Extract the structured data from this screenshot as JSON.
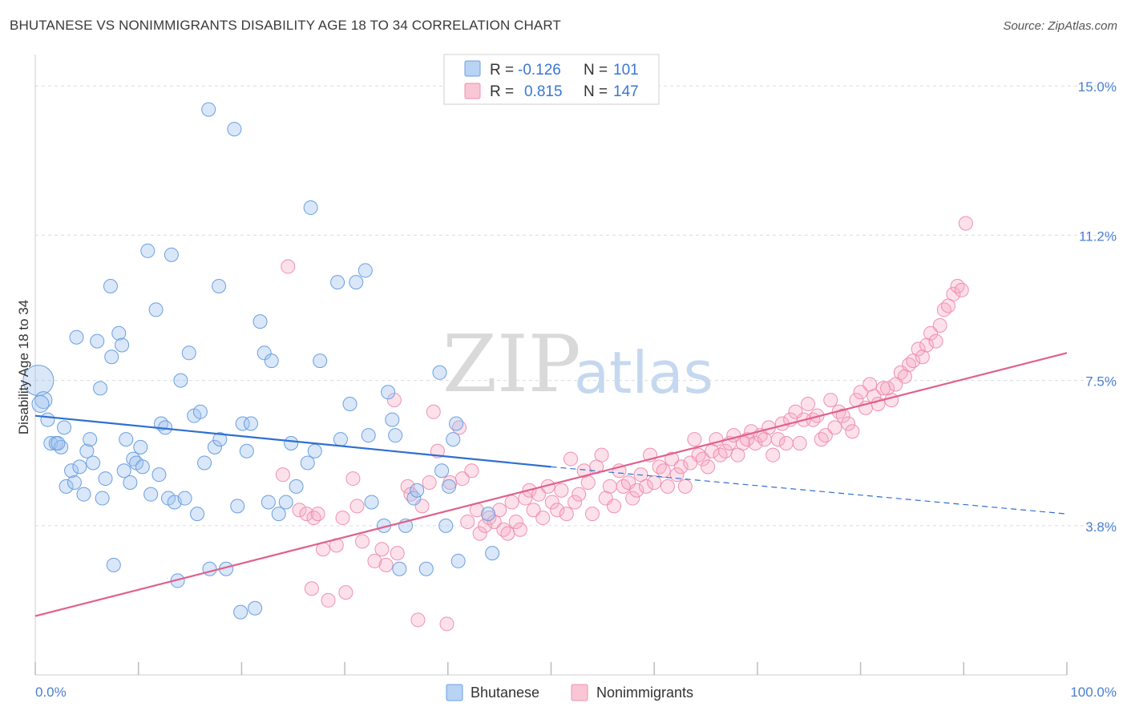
{
  "title": "BHUTANESE VS NONIMMIGRANTS DISABILITY AGE 18 TO 34 CORRELATION CHART",
  "source": "Source: ZipAtlas.com",
  "watermark": {
    "zip": "ZIP",
    "atlas": "atlas"
  },
  "legend_box": [
    {
      "r_label": "R =",
      "r_value": "-0.126",
      "n_label": "N =",
      "n_value": "101"
    },
    {
      "r_label": "R =",
      "r_value": "0.815",
      "n_label": "N =",
      "n_value": "147"
    }
  ],
  "chart_data": {
    "type": "scatter",
    "title": "BHUTANESE VS NONIMMIGRANTS DISABILITY AGE 18 TO 34 CORRELATION CHART",
    "ylabel": "Disability Age 18 to 34",
    "xlabel": "",
    "x_tick_labels": [
      "0.0%",
      "100.0%"
    ],
    "y_tick_labels": [
      "15.0%",
      "11.2%",
      "7.5%",
      "3.8%"
    ],
    "y_ticks": [
      15.0,
      11.2,
      7.5,
      3.8
    ],
    "xlim": [
      0,
      100
    ],
    "ylim": [
      0,
      15.8
    ],
    "grid": true,
    "legend_placement": "bottom-center",
    "colors": {
      "bhutanese": "#6b9fe0",
      "nonimmigrants": "#f090b0",
      "bhutanese_line": "#2f6fcf",
      "nonimmigrants_line": "#e0608e"
    },
    "series": [
      {
        "name": "Bhutanese",
        "r": -0.126,
        "n": 101,
        "trend": {
          "x": [
            0,
            50
          ],
          "y": [
            6.6,
            5.3
          ],
          "dashed_to": [
            100,
            4.1
          ]
        },
        "points": [
          [
            0.3,
            7.5
          ],
          [
            0.8,
            7.0
          ],
          [
            0.5,
            6.9
          ],
          [
            1.2,
            6.5
          ],
          [
            1.5,
            5.9
          ],
          [
            2.0,
            5.9
          ],
          [
            2.5,
            5.8
          ],
          [
            2.2,
            5.9
          ],
          [
            2.8,
            6.3
          ],
          [
            3.0,
            4.8
          ],
          [
            3.5,
            5.2
          ],
          [
            3.8,
            4.9
          ],
          [
            4.0,
            8.6
          ],
          [
            4.3,
            5.3
          ],
          [
            4.7,
            4.6
          ],
          [
            5.0,
            5.7
          ],
          [
            5.3,
            6.0
          ],
          [
            5.6,
            5.4
          ],
          [
            6.0,
            8.5
          ],
          [
            6.3,
            7.3
          ],
          [
            6.5,
            4.5
          ],
          [
            6.8,
            5.0
          ],
          [
            7.3,
            9.9
          ],
          [
            7.4,
            8.1
          ],
          [
            7.6,
            2.8
          ],
          [
            8.1,
            8.7
          ],
          [
            8.4,
            8.4
          ],
          [
            8.6,
            5.2
          ],
          [
            8.8,
            6.0
          ],
          [
            9.2,
            4.9
          ],
          [
            9.5,
            5.5
          ],
          [
            9.8,
            5.4
          ],
          [
            10.2,
            5.8
          ],
          [
            10.4,
            5.3
          ],
          [
            10.9,
            10.8
          ],
          [
            11.2,
            4.6
          ],
          [
            11.7,
            9.3
          ],
          [
            12.0,
            5.1
          ],
          [
            12.2,
            6.4
          ],
          [
            12.6,
            6.3
          ],
          [
            12.9,
            4.5
          ],
          [
            13.2,
            10.7
          ],
          [
            13.5,
            4.4
          ],
          [
            13.8,
            2.4
          ],
          [
            14.1,
            7.5
          ],
          [
            14.5,
            4.5
          ],
          [
            14.9,
            8.2
          ],
          [
            15.4,
            6.6
          ],
          [
            15.7,
            4.1
          ],
          [
            16.0,
            6.7
          ],
          [
            16.4,
            5.4
          ],
          [
            16.8,
            14.4
          ],
          [
            16.9,
            2.7
          ],
          [
            17.4,
            5.8
          ],
          [
            17.8,
            9.9
          ],
          [
            17.9,
            6.0
          ],
          [
            18.5,
            2.7
          ],
          [
            19.3,
            13.9
          ],
          [
            19.6,
            4.3
          ],
          [
            19.9,
            1.6
          ],
          [
            20.1,
            6.4
          ],
          [
            20.5,
            5.7
          ],
          [
            20.9,
            6.4
          ],
          [
            21.3,
            1.7
          ],
          [
            21.8,
            9.0
          ],
          [
            22.2,
            8.2
          ],
          [
            22.6,
            4.4
          ],
          [
            22.9,
            8.0
          ],
          [
            23.6,
            4.1
          ],
          [
            24.3,
            4.4
          ],
          [
            24.8,
            5.9
          ],
          [
            25.3,
            4.8
          ],
          [
            26.4,
            5.4
          ],
          [
            26.7,
            11.9
          ],
          [
            27.1,
            5.7
          ],
          [
            27.6,
            8.0
          ],
          [
            29.3,
            10.0
          ],
          [
            29.6,
            6.0
          ],
          [
            30.5,
            6.9
          ],
          [
            31.1,
            10.0
          ],
          [
            32.0,
            10.3
          ],
          [
            32.3,
            6.1
          ],
          [
            32.6,
            4.4
          ],
          [
            33.8,
            3.8
          ],
          [
            34.2,
            7.2
          ],
          [
            34.6,
            6.5
          ],
          [
            34.9,
            6.1
          ],
          [
            35.3,
            2.7
          ],
          [
            35.9,
            3.8
          ],
          [
            36.7,
            4.5
          ],
          [
            37.0,
            4.7
          ],
          [
            37.9,
            2.7
          ],
          [
            39.2,
            7.7
          ],
          [
            39.4,
            5.2
          ],
          [
            39.8,
            3.8
          ],
          [
            40.1,
            4.8
          ],
          [
            40.5,
            6.0
          ],
          [
            40.8,
            6.4
          ],
          [
            41.0,
            2.9
          ],
          [
            43.9,
            4.1
          ],
          [
            44.3,
            3.1
          ]
        ]
      },
      {
        "name": "Nonimmigrants",
        "r": 0.815,
        "n": 147,
        "trend": {
          "x": [
            0,
            100
          ],
          "y": [
            1.5,
            8.2
          ]
        },
        "points": [
          [
            24.5,
            10.4
          ],
          [
            24.0,
            5.1
          ],
          [
            25.6,
            4.2
          ],
          [
            26.3,
            4.1
          ],
          [
            26.8,
            2.2
          ],
          [
            27.0,
            4.0
          ],
          [
            27.4,
            4.1
          ],
          [
            27.9,
            3.2
          ],
          [
            28.4,
            1.9
          ],
          [
            29.2,
            3.3
          ],
          [
            29.8,
            4.0
          ],
          [
            30.1,
            2.1
          ],
          [
            30.8,
            5.0
          ],
          [
            31.2,
            4.3
          ],
          [
            31.7,
            3.4
          ],
          [
            32.9,
            2.9
          ],
          [
            33.6,
            3.2
          ],
          [
            34.0,
            2.8
          ],
          [
            34.8,
            7.0
          ],
          [
            35.1,
            3.1
          ],
          [
            36.1,
            4.8
          ],
          [
            36.4,
            4.6
          ],
          [
            37.1,
            1.4
          ],
          [
            37.5,
            4.3
          ],
          [
            38.2,
            4.9
          ],
          [
            38.6,
            6.7
          ],
          [
            39.0,
            5.7
          ],
          [
            39.9,
            1.3
          ],
          [
            40.2,
            4.9
          ],
          [
            41.1,
            6.3
          ],
          [
            41.4,
            5.0
          ],
          [
            41.9,
            3.9
          ],
          [
            42.3,
            5.2
          ],
          [
            42.8,
            4.2
          ],
          [
            43.1,
            3.6
          ],
          [
            43.6,
            3.8
          ],
          [
            44.0,
            4.0
          ],
          [
            44.5,
            3.9
          ],
          [
            45.0,
            4.2
          ],
          [
            45.4,
            3.7
          ],
          [
            45.8,
            3.6
          ],
          [
            46.2,
            4.4
          ],
          [
            46.6,
            3.9
          ],
          [
            47.0,
            3.7
          ],
          [
            47.5,
            4.5
          ],
          [
            47.9,
            4.7
          ],
          [
            48.3,
            4.2
          ],
          [
            48.8,
            4.6
          ],
          [
            49.2,
            4.0
          ],
          [
            49.7,
            4.8
          ],
          [
            50.1,
            4.4
          ],
          [
            50.6,
            4.2
          ],
          [
            51.0,
            4.7
          ],
          [
            51.5,
            4.1
          ],
          [
            51.9,
            5.5
          ],
          [
            52.3,
            4.4
          ],
          [
            52.7,
            4.6
          ],
          [
            53.2,
            5.2
          ],
          [
            53.6,
            4.9
          ],
          [
            54.0,
            4.1
          ],
          [
            54.4,
            5.3
          ],
          [
            54.9,
            5.6
          ],
          [
            55.3,
            4.5
          ],
          [
            55.7,
            4.8
          ],
          [
            56.1,
            4.3
          ],
          [
            56.6,
            5.2
          ],
          [
            57.0,
            4.8
          ],
          [
            57.5,
            4.9
          ],
          [
            57.9,
            4.5
          ],
          [
            58.3,
            4.7
          ],
          [
            58.7,
            5.1
          ],
          [
            59.2,
            4.8
          ],
          [
            59.6,
            5.6
          ],
          [
            60.0,
            4.9
          ],
          [
            60.5,
            5.3
          ],
          [
            60.9,
            5.2
          ],
          [
            61.3,
            4.8
          ],
          [
            61.7,
            5.5
          ],
          [
            62.2,
            5.1
          ],
          [
            62.6,
            5.3
          ],
          [
            63.0,
            4.8
          ],
          [
            63.5,
            5.4
          ],
          [
            63.9,
            6.0
          ],
          [
            64.3,
            5.6
          ],
          [
            64.7,
            5.5
          ],
          [
            65.2,
            5.3
          ],
          [
            65.6,
            5.7
          ],
          [
            66.0,
            6.0
          ],
          [
            66.4,
            5.6
          ],
          [
            66.9,
            5.7
          ],
          [
            67.3,
            5.9
          ],
          [
            67.7,
            6.1
          ],
          [
            68.1,
            5.6
          ],
          [
            68.6,
            5.9
          ],
          [
            69.0,
            6.0
          ],
          [
            69.4,
            6.2
          ],
          [
            69.8,
            5.9
          ],
          [
            70.3,
            6.1
          ],
          [
            70.7,
            6.0
          ],
          [
            71.1,
            6.3
          ],
          [
            71.5,
            5.6
          ],
          [
            72.0,
            6.0
          ],
          [
            72.4,
            6.4
          ],
          [
            72.8,
            5.9
          ],
          [
            73.2,
            6.5
          ],
          [
            73.7,
            6.7
          ],
          [
            74.1,
            5.9
          ],
          [
            74.5,
            6.5
          ],
          [
            74.9,
            6.9
          ],
          [
            75.4,
            6.5
          ],
          [
            75.8,
            6.6
          ],
          [
            76.2,
            6.0
          ],
          [
            76.6,
            6.1
          ],
          [
            77.1,
            7.0
          ],
          [
            77.5,
            6.3
          ],
          [
            77.9,
            6.7
          ],
          [
            78.3,
            6.6
          ],
          [
            78.8,
            6.4
          ],
          [
            79.2,
            6.2
          ],
          [
            79.6,
            7.0
          ],
          [
            80.0,
            7.2
          ],
          [
            80.5,
            6.8
          ],
          [
            80.9,
            7.4
          ],
          [
            81.3,
            7.1
          ],
          [
            81.7,
            6.9
          ],
          [
            82.2,
            7.3
          ],
          [
            82.6,
            7.3
          ],
          [
            83.0,
            7.0
          ],
          [
            83.4,
            7.4
          ],
          [
            83.9,
            7.7
          ],
          [
            84.3,
            7.6
          ],
          [
            84.7,
            7.9
          ],
          [
            85.1,
            8.0
          ],
          [
            85.6,
            8.3
          ],
          [
            86.0,
            8.1
          ],
          [
            86.4,
            8.4
          ],
          [
            86.8,
            8.7
          ],
          [
            87.3,
            8.5
          ],
          [
            87.7,
            8.9
          ],
          [
            88.1,
            9.3
          ],
          [
            88.5,
            9.4
          ],
          [
            89.0,
            9.7
          ],
          [
            89.4,
            9.9
          ],
          [
            89.8,
            9.8
          ],
          [
            90.2,
            11.5
          ]
        ]
      }
    ]
  },
  "bottom_legend": [
    {
      "label": "Bhutanese"
    },
    {
      "label": "Nonimmigrants"
    }
  ]
}
